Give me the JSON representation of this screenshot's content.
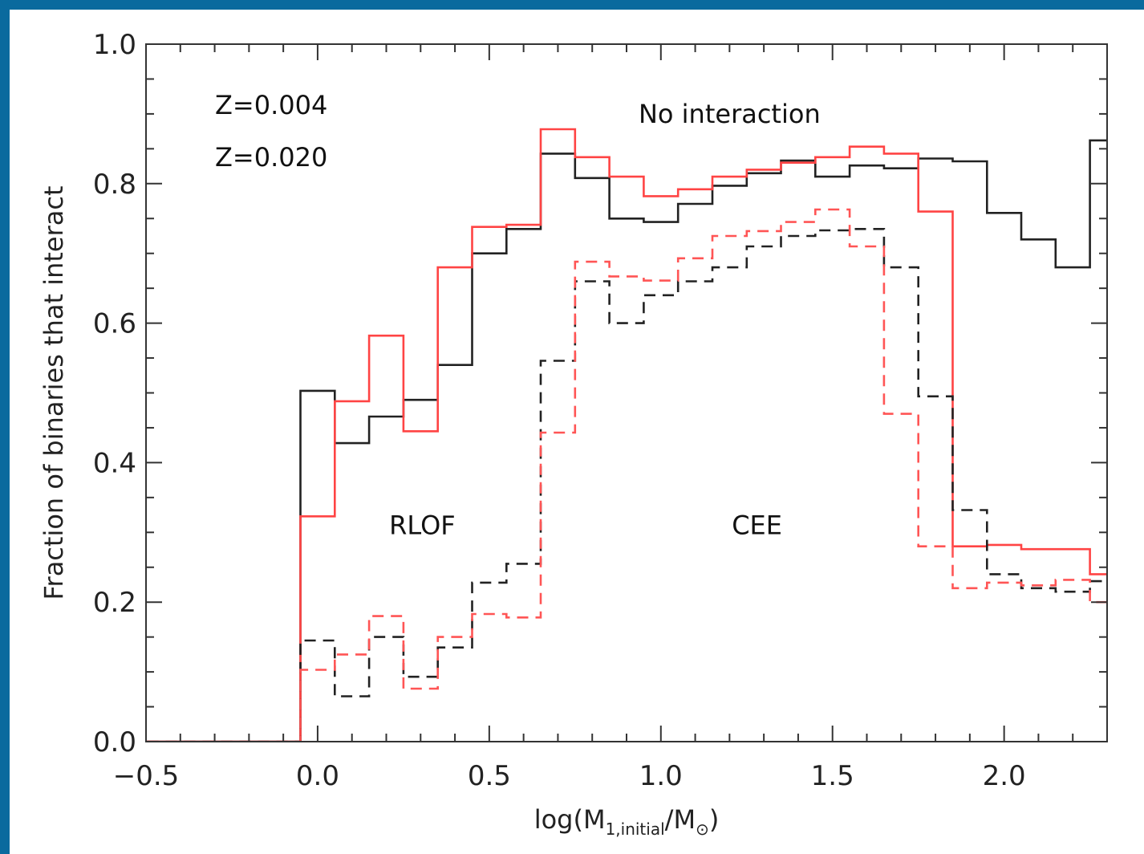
{
  "chart_data": {
    "type": "line",
    "step": true,
    "xlabel": "log(M",
    "xlabel_sub": "1,initial",
    "xlabel_tail": "/M",
    "xlabel_sun": "⊙",
    "xlabel_end": ")",
    "ylabel": "Fraction of binaries that interact",
    "xlim": [
      -0.5,
      2.3
    ],
    "ylim": [
      0.0,
      1.0
    ],
    "xticks": [
      "−0.5",
      "0.0",
      "0.5",
      "1.0",
      "1.5",
      "2.0"
    ],
    "xtick_values": [
      -0.5,
      0.0,
      0.5,
      1.0,
      1.5,
      2.0
    ],
    "yticks": [
      "0.0",
      "0.2",
      "0.4",
      "0.6",
      "0.8",
      "1.0"
    ],
    "ytick_values": [
      0.0,
      0.2,
      0.4,
      0.6,
      0.8,
      1.0
    ],
    "grid": false,
    "legend": [
      {
        "label": "Z=0.004",
        "color": "#222222"
      },
      {
        "label": "Z=0.020",
        "color": "#ff3333"
      }
    ],
    "annotations": [
      {
        "text": "No interaction",
        "x": 1.2,
        "y": 0.9
      },
      {
        "text": "RLOF",
        "x": 0.305,
        "y": 0.31
      },
      {
        "text": "CEE",
        "x": 1.28,
        "y": 0.31
      }
    ],
    "bin_edges": [
      -0.55,
      -0.05,
      0.05,
      0.15,
      0.25,
      0.35,
      0.45,
      0.55,
      0.65,
      0.75,
      0.85,
      0.95,
      1.05,
      1.15,
      1.25,
      1.35,
      1.45,
      1.55,
      1.65,
      1.75,
      1.85,
      1.95,
      2.05,
      2.15,
      2.25,
      2.3
    ],
    "series": [
      {
        "color": "#222222",
        "dash": false,
        "values": [
          0.0,
          0.503,
          0.428,
          0.466,
          0.49,
          0.54,
          0.7,
          0.735,
          0.843,
          0.808,
          0.75,
          0.745,
          0.771,
          0.797,
          0.815,
          0.833,
          0.81,
          0.826,
          0.822,
          0.836,
          0.832,
          0.758,
          0.72,
          0.68,
          0.862
        ]
      },
      {
        "color": "#ff4444",
        "dash": false,
        "values": [
          0.0,
          0.323,
          0.488,
          0.582,
          0.445,
          0.68,
          0.738,
          0.741,
          0.878,
          0.838,
          0.81,
          0.782,
          0.792,
          0.81,
          0.82,
          0.83,
          0.838,
          0.853,
          0.843,
          0.76,
          0.28,
          0.282,
          0.276,
          0.276,
          0.24
        ]
      },
      {
        "color": "#222222",
        "dash": true,
        "values": [
          0.0,
          0.145,
          0.065,
          0.15,
          0.093,
          0.135,
          0.228,
          0.255,
          0.546,
          0.66,
          0.6,
          0.64,
          0.66,
          0.68,
          0.71,
          0.725,
          0.733,
          0.735,
          0.68,
          0.495,
          0.332,
          0.24,
          0.22,
          0.215,
          0.23
        ]
      },
      {
        "color": "#ff5555",
        "dash": true,
        "values": [
          0.0,
          0.103,
          0.125,
          0.18,
          0.076,
          0.15,
          0.183,
          0.178,
          0.443,
          0.688,
          0.667,
          0.661,
          0.693,
          0.725,
          0.732,
          0.745,
          0.763,
          0.71,
          0.47,
          0.28,
          0.22,
          0.228,
          0.224,
          0.232,
          0.2
        ]
      }
    ]
  }
}
